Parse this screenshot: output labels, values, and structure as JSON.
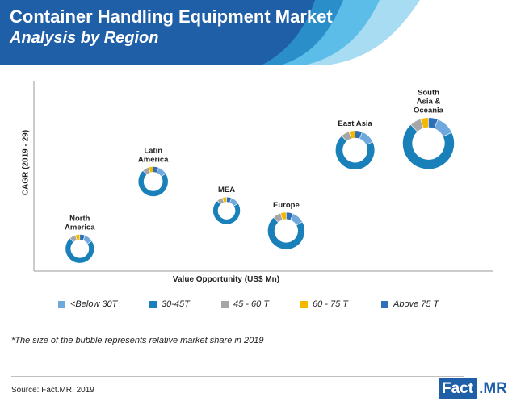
{
  "header": {
    "title": "Container Handling Equipment Market",
    "subtitle": "Analysis by Region"
  },
  "colors": {
    "banner_dark": "#1f5fa8",
    "banner_mid": "#2a8fc9",
    "banner_light": "#5bbde8",
    "banner_pale": "#a7dcf3"
  },
  "chart_data": {
    "type": "bubble-donut",
    "xlabel": "Value Opportunity (US$ Mn)",
    "ylabel": "CAGR (2019 - 29)",
    "segments": [
      {
        "name": "<Below 30T",
        "color": "#6ea8dc"
      },
      {
        "name": "30-45T",
        "color": "#1a80b9"
      },
      {
        "name": "45 - 60 T",
        "color": "#a6a6a6"
      },
      {
        "name": "60 - 75 T",
        "color": "#f5b800"
      },
      {
        "name": "Above 75 T",
        "color": "#2e6fb5"
      }
    ],
    "regions": [
      {
        "name": "North America",
        "label_lines": [
          "North",
          "America"
        ],
        "x": 1.0,
        "y": 1.0,
        "size": 0.56,
        "shares": [
          0.1,
          0.72,
          0.07,
          0.05,
          0.06
        ]
      },
      {
        "name": "Latin America",
        "label_lines": [
          "Latin",
          "America"
        ],
        "x": 2.6,
        "y": 4.0,
        "size": 0.58,
        "shares": [
          0.1,
          0.72,
          0.07,
          0.05,
          0.06
        ]
      },
      {
        "name": "MEA",
        "label_lines": [
          "MEA"
        ],
        "x": 4.2,
        "y": 2.7,
        "size": 0.53,
        "shares": [
          0.1,
          0.72,
          0.07,
          0.05,
          0.06
        ]
      },
      {
        "name": "Europe",
        "label_lines": [
          "Europe"
        ],
        "x": 5.5,
        "y": 1.8,
        "size": 0.72,
        "shares": [
          0.11,
          0.71,
          0.07,
          0.05,
          0.06
        ]
      },
      {
        "name": "East Asia",
        "label_lines": [
          "East Asia"
        ],
        "x": 7.0,
        "y": 5.4,
        "size": 0.76,
        "shares": [
          0.12,
          0.7,
          0.07,
          0.05,
          0.06
        ]
      },
      {
        "name": "South Asia & Oceania",
        "label_lines": [
          "South",
          "Asia &",
          "Oceania"
        ],
        "x": 8.6,
        "y": 5.7,
        "size": 1.0,
        "shares": [
          0.12,
          0.7,
          0.07,
          0.05,
          0.06
        ]
      }
    ],
    "xlim": [
      0,
      10
    ],
    "ylim": [
      0,
      8.5
    ],
    "axis_ticks": false,
    "legend_position": "bottom",
    "note": "*The size of the bubble represents relative market share in 2019"
  },
  "footer": {
    "source": "Source: Fact.MR, 2019",
    "logo_left": "Fact",
    "logo_right": ".MR"
  }
}
